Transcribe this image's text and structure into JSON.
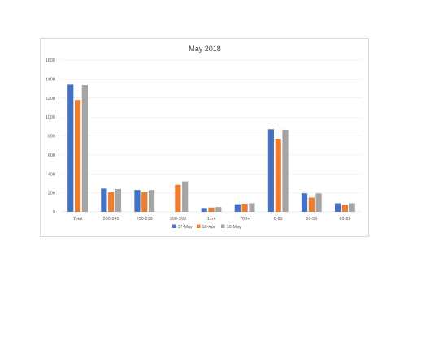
{
  "chart_data": {
    "type": "bar",
    "title": "May 2018",
    "categories": [
      "Total",
      "200-249",
      "250-299",
      "300-399",
      "1m+",
      "700+",
      "0-29",
      "30-59",
      "60-89"
    ],
    "series": [
      {
        "name": "17-May",
        "color": "#4472c4",
        "values": [
          1340,
          245,
          230,
          0,
          40,
          80,
          870,
          195,
          90
        ]
      },
      {
        "name": "18-Apr",
        "color": "#ed7d31",
        "values": [
          1180,
          205,
          205,
          285,
          45,
          85,
          770,
          150,
          75
        ]
      },
      {
        "name": "18-May",
        "color": "#a5a5a5",
        "values": [
          1335,
          240,
          230,
          320,
          50,
          90,
          865,
          195,
          90
        ]
      }
    ],
    "yticks": [
      "0",
      "200",
      "400",
      "600",
      "800",
      "1000",
      "1200",
      "1400",
      "1600"
    ],
    "ylim": [
      0,
      1600
    ],
    "grid": true,
    "legend_position": "bottom"
  }
}
